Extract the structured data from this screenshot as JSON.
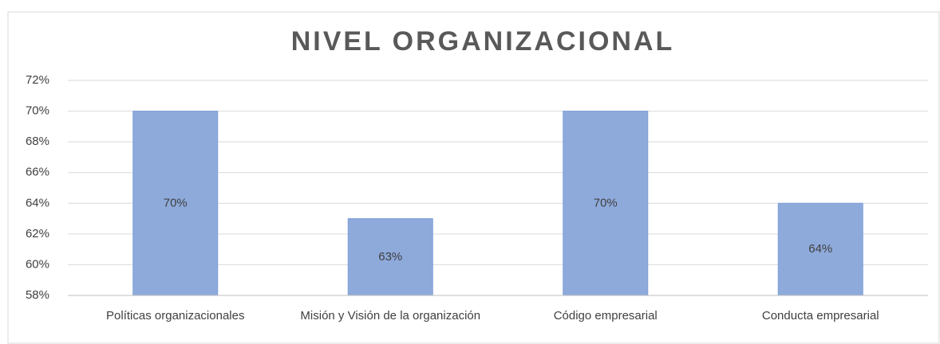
{
  "chart_data": {
    "type": "bar",
    "title": "NIVEL ORGANIZACIONAL",
    "categories": [
      "Políticas organizacionales",
      "Misión y Visión de la organización",
      "Código empresarial",
      "Conducta empresarial"
    ],
    "values": [
      70,
      63,
      70,
      64
    ],
    "value_labels": [
      "70%",
      "63%",
      "70%",
      "64%"
    ],
    "color": "#8eaadb",
    "ylim": [
      58,
      72
    ],
    "yticks": [
      {
        "value": 58,
        "label": "58%"
      },
      {
        "value": 60,
        "label": "60%"
      },
      {
        "value": 62,
        "label": "62%"
      },
      {
        "value": 64,
        "label": "64%"
      },
      {
        "value": 66,
        "label": "66%"
      },
      {
        "value": 68,
        "label": "68%"
      },
      {
        "value": 70,
        "label": "70%"
      },
      {
        "value": 72,
        "label": "72%"
      }
    ],
    "grid": true
  }
}
